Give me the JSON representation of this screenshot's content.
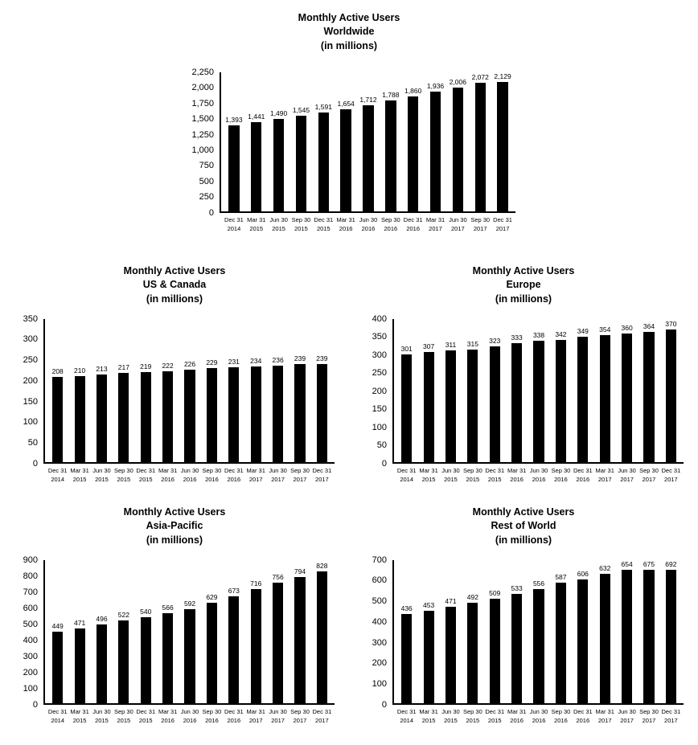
{
  "page": {
    "background": "#ffffff",
    "text_color": "#000000",
    "bar_color": "#000000"
  },
  "chart_data": [
    {
      "type": "bar",
      "name": "worldwide",
      "title": "Monthly Active Users Worldwide (in millions)",
      "title_lines": [
        "Monthly Active Users",
        "Worldwide",
        "(in millions)"
      ],
      "xlabel": "",
      "ylabel": "",
      "ylim": [
        0,
        2250
      ],
      "ystep": 250,
      "grid": false,
      "legend": null,
      "bar_color": "#000000",
      "ytick_labels": [
        "2,250",
        "2,000",
        "1,750",
        "1,500",
        "1,250",
        "1,000",
        "750",
        "500",
        "250",
        "0"
      ],
      "categories": [
        [
          "Dec 31",
          "2014"
        ],
        [
          "Mar 31",
          "2015"
        ],
        [
          "Jun 30",
          "2015"
        ],
        [
          "Sep 30",
          "2015"
        ],
        [
          "Dec 31",
          "2015"
        ],
        [
          "Mar 31",
          "2016"
        ],
        [
          "Jun 30",
          "2016"
        ],
        [
          "Sep 30",
          "2016"
        ],
        [
          "Dec 31",
          "2016"
        ],
        [
          "Mar 31",
          "2017"
        ],
        [
          "Jun 30",
          "2017"
        ],
        [
          "Sep 30",
          "2017"
        ],
        [
          "Dec 31",
          "2017"
        ]
      ],
      "values": [
        1393,
        1441,
        1490,
        1545,
        1591,
        1654,
        1712,
        1788,
        1860,
        1936,
        2006,
        2072,
        2129
      ],
      "value_labels": [
        "1,393",
        "1,441",
        "1,490",
        "1,545",
        "1,591",
        "1,654",
        "1,712",
        "1,788",
        "1,860",
        "1,936",
        "2,006",
        "2,072",
        "2,129"
      ]
    },
    {
      "type": "bar",
      "name": "us-canada",
      "title": "Monthly Active Users US & Canada (in millions)",
      "title_lines": [
        "Monthly Active Users",
        "US & Canada",
        "(in millions)"
      ],
      "xlabel": "",
      "ylabel": "",
      "ylim": [
        0,
        350
      ],
      "ystep": 50,
      "grid": false,
      "legend": null,
      "bar_color": "#000000",
      "ytick_labels": [
        "350",
        "300",
        "250",
        "200",
        "150",
        "100",
        "50",
        "0"
      ],
      "categories": [
        [
          "Dec 31",
          "2014"
        ],
        [
          "Mar 31",
          "2015"
        ],
        [
          "Jun 30",
          "2015"
        ],
        [
          "Sep 30",
          "2015"
        ],
        [
          "Dec 31",
          "2015"
        ],
        [
          "Mar 31",
          "2016"
        ],
        [
          "Jun 30",
          "2016"
        ],
        [
          "Sep 30",
          "2016"
        ],
        [
          "Dec 31",
          "2016"
        ],
        [
          "Mar 31",
          "2017"
        ],
        [
          "Jun 30",
          "2017"
        ],
        [
          "Sep 30",
          "2017"
        ],
        [
          "Dec 31",
          "2017"
        ]
      ],
      "values": [
        208,
        210,
        213,
        217,
        219,
        222,
        226,
        229,
        231,
        234,
        236,
        239,
        239
      ],
      "value_labels": [
        "208",
        "210",
        "213",
        "217",
        "219",
        "222",
        "226",
        "229",
        "231",
        "234",
        "236",
        "239",
        "239"
      ]
    },
    {
      "type": "bar",
      "name": "europe",
      "title": "Monthly Active Users Europe (in millions)",
      "title_lines": [
        "Monthly Active Users",
        "Europe",
        "(in millions)"
      ],
      "xlabel": "",
      "ylabel": "",
      "ylim": [
        0,
        400
      ],
      "ystep": 50,
      "grid": false,
      "legend": null,
      "bar_color": "#000000",
      "ytick_labels": [
        "400",
        "350",
        "300",
        "250",
        "200",
        "150",
        "100",
        "50",
        "0"
      ],
      "categories": [
        [
          "Dec 31",
          "2014"
        ],
        [
          "Mar 31",
          "2015"
        ],
        [
          "Jun 30",
          "2015"
        ],
        [
          "Sep 30",
          "2015"
        ],
        [
          "Dec 31",
          "2015"
        ],
        [
          "Mar 31",
          "2016"
        ],
        [
          "Jun 30",
          "2016"
        ],
        [
          "Sep 30",
          "2016"
        ],
        [
          "Dec 31",
          "2016"
        ],
        [
          "Mar 31",
          "2017"
        ],
        [
          "Jun 30",
          "2017"
        ],
        [
          "Sep 30",
          "2017"
        ],
        [
          "Dec 31",
          "2017"
        ]
      ],
      "values": [
        301,
        307,
        311,
        315,
        323,
        333,
        338,
        342,
        349,
        354,
        360,
        364,
        370
      ],
      "value_labels": [
        "301",
        "307",
        "311",
        "315",
        "323",
        "333",
        "338",
        "342",
        "349",
        "354",
        "360",
        "364",
        "370"
      ]
    },
    {
      "type": "bar",
      "name": "asia-pacific",
      "title": "Monthly Active Users Asia-Pacific (in millions)",
      "title_lines": [
        "Monthly Active Users",
        "Asia-Pacific",
        "(in millions)"
      ],
      "xlabel": "",
      "ylabel": "",
      "ylim": [
        0,
        900
      ],
      "ystep": 100,
      "grid": false,
      "legend": null,
      "bar_color": "#000000",
      "ytick_labels": [
        "900",
        "800",
        "700",
        "600",
        "500",
        "400",
        "300",
        "200",
        "100",
        "0"
      ],
      "categories": [
        [
          "Dec 31",
          "2014"
        ],
        [
          "Mar 31",
          "2015"
        ],
        [
          "Jun 30",
          "2015"
        ],
        [
          "Sep 30",
          "2015"
        ],
        [
          "Dec 31",
          "2015"
        ],
        [
          "Mar 31",
          "2016"
        ],
        [
          "Jun 30",
          "2016"
        ],
        [
          "Sep 30",
          "2016"
        ],
        [
          "Dec 31",
          "2016"
        ],
        [
          "Mar 31",
          "2017"
        ],
        [
          "Jun 30",
          "2017"
        ],
        [
          "Sep 30",
          "2017"
        ],
        [
          "Dec 31",
          "2017"
        ]
      ],
      "values": [
        449,
        471,
        496,
        522,
        540,
        566,
        592,
        629,
        673,
        716,
        756,
        794,
        828
      ],
      "value_labels": [
        "449",
        "471",
        "496",
        "522",
        "540",
        "566",
        "592",
        "629",
        "673",
        "716",
        "756",
        "794",
        "828"
      ]
    },
    {
      "type": "bar",
      "name": "rest-of-world",
      "title": "Monthly Active Users Rest of World (in millions)",
      "title_lines": [
        "Monthly Active Users",
        "Rest of World",
        "(in millions)"
      ],
      "xlabel": "",
      "ylabel": "",
      "ylim": [
        0,
        700
      ],
      "ystep": 100,
      "grid": false,
      "legend": null,
      "bar_color": "#000000",
      "ytick_labels": [
        "700",
        "600",
        "500",
        "400",
        "300",
        "200",
        "100",
        "0"
      ],
      "categories": [
        [
          "Dec 31",
          "2014"
        ],
        [
          "Mar 31",
          "2015"
        ],
        [
          "Jun 30",
          "2015"
        ],
        [
          "Sep 30",
          "2015"
        ],
        [
          "Dec 31",
          "2015"
        ],
        [
          "Mar 31",
          "2016"
        ],
        [
          "Jun 30",
          "2016"
        ],
        [
          "Sep 30",
          "2016"
        ],
        [
          "Dec 31",
          "2016"
        ],
        [
          "Mar 31",
          "2017"
        ],
        [
          "Jun 30",
          "2017"
        ],
        [
          "Sep 30",
          "2017"
        ],
        [
          "Dec 31",
          "2017"
        ]
      ],
      "values": [
        436,
        453,
        471,
        492,
        509,
        533,
        556,
        587,
        606,
        632,
        654,
        675,
        692
      ],
      "value_labels": [
        "436",
        "453",
        "471",
        "492",
        "509",
        "533",
        "556",
        "587",
        "606",
        "632",
        "654",
        "675",
        "692"
      ]
    }
  ]
}
